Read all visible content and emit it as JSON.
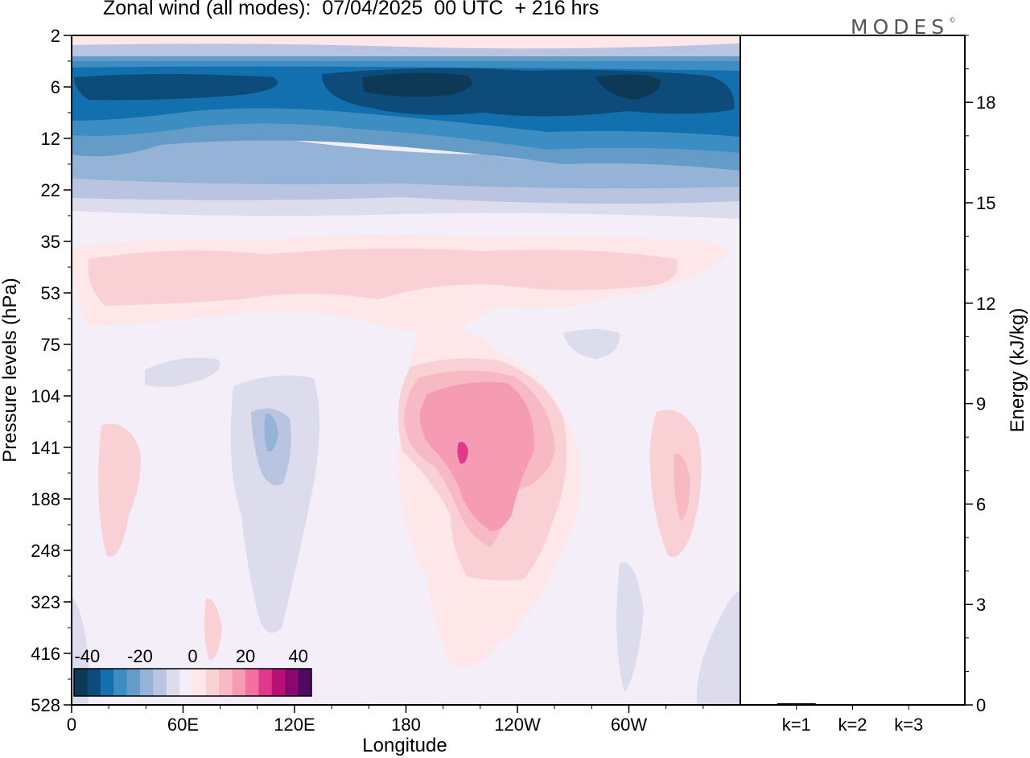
{
  "title": "Zonal wind (all modes):  07/04/2025  00 UTC  + 216 hrs",
  "logo": "MODES",
  "chart_data": [
    {
      "type": "heatmap",
      "title": "Zonal wind (all modes):  07/04/2025  00 UTC  + 216 hrs",
      "xlabel": "Longitude",
      "ylabel": "Pressure levels (hPa)",
      "x_ticks": [
        "0",
        "60E",
        "120E",
        "180",
        "120W",
        "60W"
      ],
      "x_tick_degrees": [
        0,
        60,
        120,
        180,
        240,
        300
      ],
      "xlim": [
        0,
        360
      ],
      "y_ticks": [
        "2",
        "6",
        "12",
        "22",
        "35",
        "53",
        "75",
        "104",
        "141",
        "188",
        "248",
        "323",
        "416",
        "528"
      ],
      "colorbar": {
        "tick_labels": [
          "-40",
          "-20",
          "0",
          "20",
          "40"
        ],
        "tick_values": [
          -40,
          -20,
          0,
          20,
          40
        ],
        "range": [
          -45,
          45
        ],
        "colors": [
          "#0d3956",
          "#0d4c7a",
          "#1170ad",
          "#3b8dc2",
          "#649cc7",
          "#94b3d6",
          "#b9c5e0",
          "#dcdcec",
          "#f3eef7",
          "#fde7e9",
          "#f9d1d5",
          "#f7b9c4",
          "#f59bb3",
          "#f36fa0",
          "#e0398b",
          "#b80f78",
          "#8a086e",
          "#4e0962"
        ]
      },
      "fields": [
        {
          "region": "upper stratosphere (2-4 hPa)",
          "pressure_range_hpa": [
            2,
            4
          ],
          "approx_u_ms": -10
        },
        {
          "region": "easterly jet core (5-14 hPa)",
          "pressure_range_hpa": [
            5,
            14
          ],
          "approx_u_ms": -35
        },
        {
          "region": "jet maximum 150E-170W near 6 hPa",
          "pressure_range_hpa": [
            5,
            8
          ],
          "lon_range": [
            150,
            190
          ],
          "approx_u_ms": -45
        },
        {
          "region": "transition (14-28 hPa)",
          "pressure_range_hpa": [
            14,
            28
          ],
          "approx_u_ms": -15
        },
        {
          "region": "weak westerlies (35-70 hPa)",
          "pressure_range_hpa": [
            35,
            70
          ],
          "approx_u_ms": 5
        },
        {
          "region": "westerly maximum near 150W",
          "pressure_range_hpa": [
            100,
            250
          ],
          "lon_range": [
            170,
            240
          ],
          "approx_u_ms": 20
        },
        {
          "region": "easterlies near 100E",
          "pressure_range_hpa": [
            100,
            200
          ],
          "lon_range": [
            80,
            120
          ],
          "approx_u_ms": -10
        },
        {
          "region": "westerlies near 30W",
          "pressure_range_hpa": [
            110,
            200
          ],
          "lon_range": [
            310,
            340
          ],
          "approx_u_ms": 8
        }
      ]
    },
    {
      "type": "bar",
      "ylabel": "Energy (kJ/kg)",
      "categories": [
        "k=1",
        "k=2",
        "k=3"
      ],
      "values": [
        0.05,
        0.02,
        0.02
      ],
      "ylim": [
        0,
        20
      ],
      "y_ticks": [
        0,
        3,
        6,
        9,
        12,
        15,
        18
      ]
    }
  ]
}
